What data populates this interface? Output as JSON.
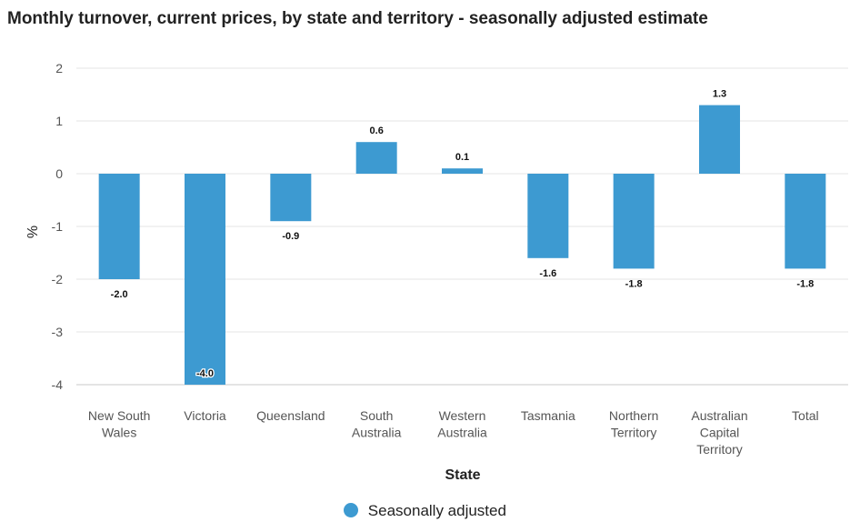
{
  "chart_data": {
    "type": "bar",
    "title": "Monthly turnover, current prices, by state and territory - seasonally adjusted estimate",
    "xlabel": "State",
    "ylabel": "%",
    "ylim": [
      -4,
      2
    ],
    "yticks": [
      2,
      1,
      0,
      -1,
      -2,
      -3,
      -4
    ],
    "categories": [
      [
        "New South",
        "Wales"
      ],
      [
        "Victoria"
      ],
      [
        "Queensland"
      ],
      [
        "South",
        "Australia"
      ],
      [
        "Western",
        "Australia"
      ],
      [
        "Tasmania"
      ],
      [
        "Northern",
        "Territory"
      ],
      [
        "Australian",
        "Capital",
        "Territory"
      ],
      [
        "Total"
      ]
    ],
    "series": [
      {
        "name": "Seasonally adjusted",
        "color": "#3d9ad1",
        "values": [
          -2.0,
          -4.0,
          -0.9,
          0.6,
          0.1,
          -1.6,
          -1.8,
          1.3,
          -1.8
        ]
      }
    ],
    "legend": "bottom-center",
    "grid": true
  }
}
